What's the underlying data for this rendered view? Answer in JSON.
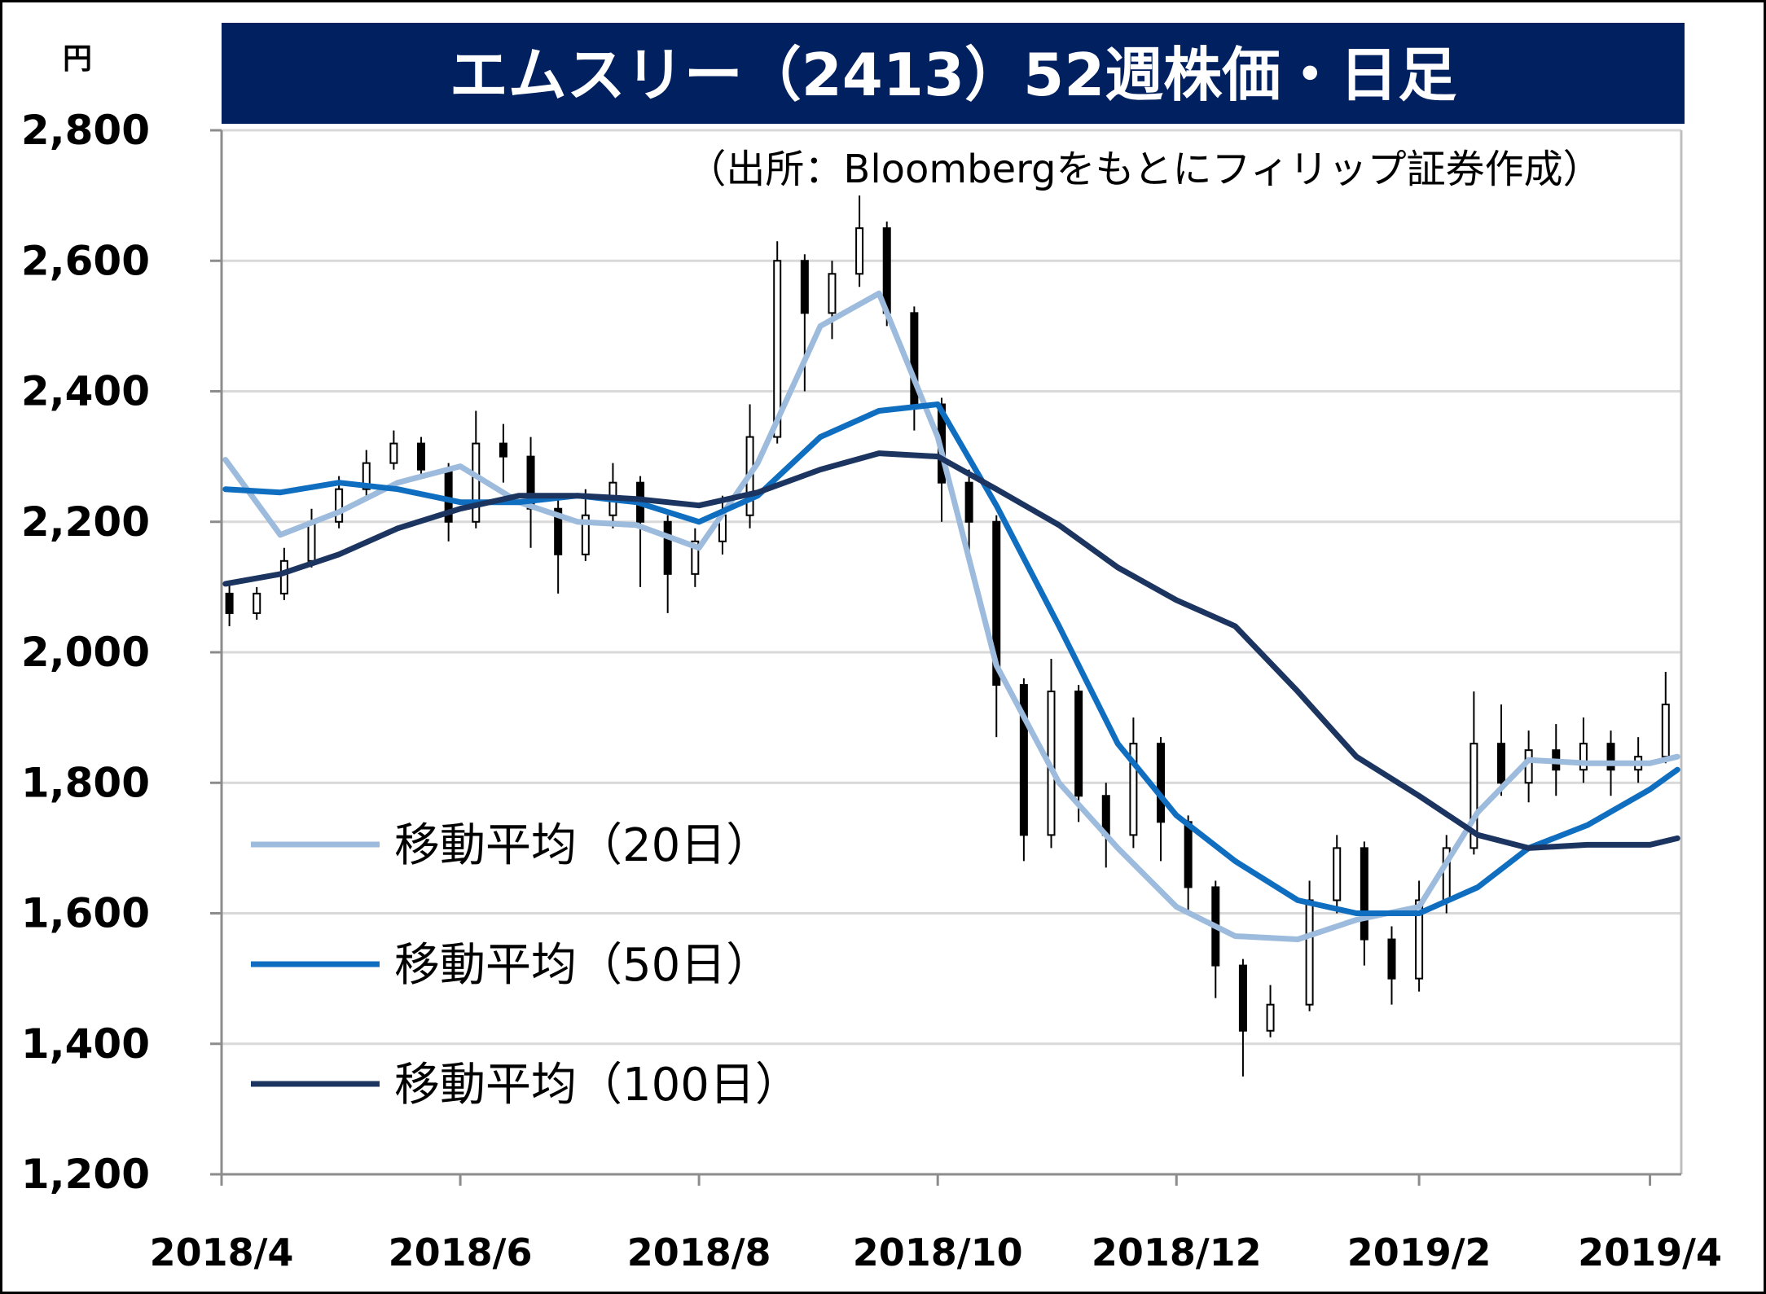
{
  "chart_data": {
    "type": "line",
    "title": "エムスリー（2413）52週株価・日足",
    "subtitle": "（出所：Bloombergをもとにフィリップ証券作成）",
    "ylabel": "円",
    "ylim": [
      1200,
      2800
    ],
    "yticks": [
      "1,200",
      "1,400",
      "1,600",
      "1,800",
      "2,000",
      "2,200",
      "2,400",
      "2,600",
      "2,800"
    ],
    "ytick_values": [
      1200,
      1400,
      1600,
      1800,
      2000,
      2200,
      2400,
      2600,
      2800
    ],
    "xticks": [
      "2018/4",
      "2018/6",
      "2018/8",
      "2018/10",
      "2018/12",
      "2019/2",
      "2019/4"
    ],
    "grid": true,
    "legend_position": "bottom-left",
    "x": [
      "2018/4/2",
      "2018/4/16",
      "2018/5/1",
      "2018/5/16",
      "2018/6/1",
      "2018/6/16",
      "2018/7/1",
      "2018/7/16",
      "2018/8/1",
      "2018/8/16",
      "2018/9/1",
      "2018/9/16",
      "2018/10/1",
      "2018/10/16",
      "2018/11/1",
      "2018/11/16",
      "2018/12/1",
      "2018/12/16",
      "2019/1/1",
      "2019/1/16",
      "2019/2/1",
      "2019/2/16",
      "2019/3/1",
      "2019/3/16",
      "2019/4/1",
      "2019/4/8"
    ],
    "series": [
      {
        "name": "移動平均（20日）",
        "color": "#9DBBDD",
        "values": [
          2295,
          2180,
          2215,
          2260,
          2285,
          2230,
          2200,
          2195,
          2160,
          2290,
          2500,
          2550,
          2330,
          1980,
          1800,
          1700,
          1610,
          1565,
          1560,
          1590,
          1610,
          1755,
          1835,
          1830,
          1830,
          1840
        ]
      },
      {
        "name": "移動平均（50日）",
        "color": "#0F6EBF",
        "values": [
          2250,
          2245,
          2260,
          2250,
          2230,
          2230,
          2240,
          2230,
          2200,
          2240,
          2330,
          2370,
          2380,
          2225,
          2040,
          1860,
          1750,
          1680,
          1620,
          1600,
          1600,
          1640,
          1700,
          1735,
          1790,
          1820
        ]
      },
      {
        "name": "移動平均（100日）",
        "color": "#1B3560",
        "values": [
          2105,
          2120,
          2150,
          2190,
          2220,
          2240,
          2240,
          2235,
          2225,
          2245,
          2280,
          2305,
          2300,
          2250,
          2195,
          2130,
          2080,
          2040,
          1940,
          1840,
          1780,
          1720,
          1700,
          1705,
          1705,
          1715
        ]
      }
    ],
    "candles": [
      {
        "x": "2018/4/3",
        "open": 2090,
        "close": 2060,
        "high": 2110,
        "low": 2040
      },
      {
        "x": "2018/4/10",
        "open": 2060,
        "close": 2090,
        "high": 2100,
        "low": 2050
      },
      {
        "x": "2018/4/17",
        "open": 2090,
        "close": 2140,
        "high": 2160,
        "low": 2080
      },
      {
        "x": "2018/4/24",
        "open": 2140,
        "close": 2200,
        "high": 2220,
        "low": 2130
      },
      {
        "x": "2018/5/1",
        "open": 2200,
        "close": 2250,
        "high": 2270,
        "low": 2190
      },
      {
        "x": "2018/5/8",
        "open": 2250,
        "close": 2290,
        "high": 2310,
        "low": 2240
      },
      {
        "x": "2018/5/15",
        "open": 2290,
        "close": 2320,
        "high": 2340,
        "low": 2280
      },
      {
        "x": "2018/5/22",
        "open": 2320,
        "close": 2280,
        "high": 2330,
        "low": 2270
      },
      {
        "x": "2018/5/29",
        "open": 2280,
        "close": 2200,
        "high": 2290,
        "low": 2170
      },
      {
        "x": "2018/6/5",
        "open": 2200,
        "close": 2320,
        "high": 2370,
        "low": 2190
      },
      {
        "x": "2018/6/12",
        "open": 2320,
        "close": 2300,
        "high": 2350,
        "low": 2260
      },
      {
        "x": "2018/6/19",
        "open": 2300,
        "close": 2220,
        "high": 2330,
        "low": 2160
      },
      {
        "x": "2018/6/26",
        "open": 2220,
        "close": 2150,
        "high": 2240,
        "low": 2090
      },
      {
        "x": "2018/7/3",
        "open": 2150,
        "close": 2210,
        "high": 2250,
        "low": 2140
      },
      {
        "x": "2018/7/10",
        "open": 2210,
        "close": 2260,
        "high": 2290,
        "low": 2190
      },
      {
        "x": "2018/7/17",
        "open": 2260,
        "close": 2200,
        "high": 2270,
        "low": 2100
      },
      {
        "x": "2018/7/24",
        "open": 2200,
        "close": 2120,
        "high": 2210,
        "low": 2060
      },
      {
        "x": "2018/7/31",
        "open": 2120,
        "close": 2170,
        "high": 2190,
        "low": 2100
      },
      {
        "x": "2018/8/7",
        "open": 2170,
        "close": 2210,
        "high": 2240,
        "low": 2150
      },
      {
        "x": "2018/8/14",
        "open": 2210,
        "close": 2330,
        "high": 2380,
        "low": 2190
      },
      {
        "x": "2018/8/21",
        "open": 2330,
        "close": 2600,
        "high": 2630,
        "low": 2320
      },
      {
        "x": "2018/8/28",
        "open": 2600,
        "close": 2520,
        "high": 2610,
        "low": 2400
      },
      {
        "x": "2018/9/4",
        "open": 2520,
        "close": 2580,
        "high": 2600,
        "low": 2480
      },
      {
        "x": "2018/9/11",
        "open": 2580,
        "close": 2650,
        "high": 2700,
        "low": 2560
      },
      {
        "x": "2018/9/18",
        "open": 2650,
        "close": 2520,
        "high": 2660,
        "low": 2500
      },
      {
        "x": "2018/9/25",
        "open": 2520,
        "close": 2380,
        "high": 2530,
        "low": 2340
      },
      {
        "x": "2018/10/2",
        "open": 2380,
        "close": 2260,
        "high": 2390,
        "low": 2200
      },
      {
        "x": "2018/10/9",
        "open": 2260,
        "close": 2200,
        "high": 2280,
        "low": 2150
      },
      {
        "x": "2018/10/16",
        "open": 2200,
        "close": 1950,
        "high": 2210,
        "low": 1870
      },
      {
        "x": "2018/10/23",
        "open": 1950,
        "close": 1720,
        "high": 1960,
        "low": 1680
      },
      {
        "x": "2018/10/30",
        "open": 1720,
        "close": 1940,
        "high": 1990,
        "low": 1700
      },
      {
        "x": "2018/11/6",
        "open": 1940,
        "close": 1780,
        "high": 1950,
        "low": 1740
      },
      {
        "x": "2018/11/13",
        "open": 1780,
        "close": 1720,
        "high": 1800,
        "low": 1670
      },
      {
        "x": "2018/11/20",
        "open": 1720,
        "close": 1860,
        "high": 1900,
        "low": 1700
      },
      {
        "x": "2018/11/27",
        "open": 1860,
        "close": 1740,
        "high": 1870,
        "low": 1680
      },
      {
        "x": "2018/12/4",
        "open": 1740,
        "close": 1640,
        "high": 1750,
        "low": 1600
      },
      {
        "x": "2018/12/11",
        "open": 1640,
        "close": 1520,
        "high": 1650,
        "low": 1470
      },
      {
        "x": "2018/12/18",
        "open": 1520,
        "close": 1420,
        "high": 1530,
        "low": 1350
      },
      {
        "x": "2018/12/25",
        "open": 1420,
        "close": 1460,
        "high": 1490,
        "low": 1410
      },
      {
        "x": "2019/1/4",
        "open": 1460,
        "close": 1620,
        "high": 1650,
        "low": 1450
      },
      {
        "x": "2019/1/11",
        "open": 1620,
        "close": 1700,
        "high": 1720,
        "low": 1600
      },
      {
        "x": "2019/1/18",
        "open": 1700,
        "close": 1560,
        "high": 1710,
        "low": 1520
      },
      {
        "x": "2019/1/25",
        "open": 1560,
        "close": 1500,
        "high": 1580,
        "low": 1460
      },
      {
        "x": "2019/2/1",
        "open": 1500,
        "close": 1620,
        "high": 1650,
        "low": 1480
      },
      {
        "x": "2019/2/8",
        "open": 1620,
        "close": 1700,
        "high": 1720,
        "low": 1600
      },
      {
        "x": "2019/2/15",
        "open": 1700,
        "close": 1860,
        "high": 1940,
        "low": 1690
      },
      {
        "x": "2019/2/22",
        "open": 1860,
        "close": 1800,
        "high": 1920,
        "low": 1780
      },
      {
        "x": "2019/3/1",
        "open": 1800,
        "close": 1850,
        "high": 1880,
        "low": 1770
      },
      {
        "x": "2019/3/8",
        "open": 1850,
        "close": 1820,
        "high": 1890,
        "low": 1780
      },
      {
        "x": "2019/3/15",
        "open": 1820,
        "close": 1860,
        "high": 1900,
        "low": 1800
      },
      {
        "x": "2019/3/22",
        "open": 1860,
        "close": 1820,
        "high": 1880,
        "low": 1780
      },
      {
        "x": "2019/3/29",
        "open": 1820,
        "close": 1840,
        "high": 1870,
        "low": 1800
      },
      {
        "x": "2019/4/5",
        "open": 1840,
        "close": 1920,
        "high": 1970,
        "low": 1830
      }
    ]
  }
}
